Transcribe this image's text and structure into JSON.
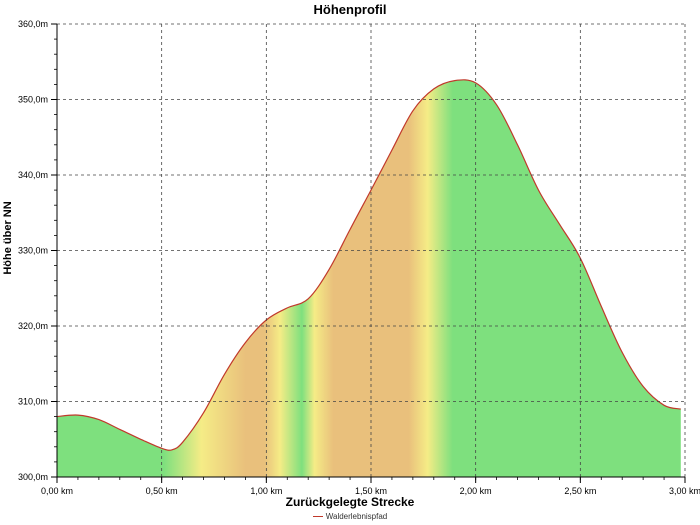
{
  "chart_data": {
    "type": "area",
    "title": "Höhenprofil",
    "xlabel": "Zurückgelegte Strecke",
    "ylabel": "Höhe über NN",
    "xlim": [
      0,
      3.0
    ],
    "ylim": [
      300,
      360
    ],
    "x_ticks": [
      0,
      0.5,
      1.0,
      1.5,
      2.0,
      2.5,
      3.0
    ],
    "x_tick_labels": [
      "0,00 km",
      "0,50 km",
      "1,00 km",
      "1,50 km",
      "2,00 km",
      "2,50 km",
      "3,00 km"
    ],
    "y_ticks": [
      300,
      310,
      320,
      330,
      340,
      350,
      360
    ],
    "y_tick_labels": [
      "300,0m",
      "310,0m",
      "320,0m",
      "330,0m",
      "340,0m",
      "350,0m",
      "360,0m"
    ],
    "grid": true,
    "legend_position": "bottom",
    "series": [
      {
        "name": "Walderlebnispfad",
        "x": [
          0,
          0.1,
          0.2,
          0.3,
          0.4,
          0.5,
          0.55,
          0.6,
          0.7,
          0.8,
          0.9,
          1.0,
          1.1,
          1.2,
          1.3,
          1.4,
          1.5,
          1.6,
          1.7,
          1.8,
          1.9,
          2.0,
          2.1,
          2.2,
          2.3,
          2.4,
          2.5,
          2.6,
          2.7,
          2.8,
          2.9,
          2.98
        ],
        "y": [
          308,
          308.2,
          307.6,
          306.3,
          305,
          303.8,
          303.6,
          304.6,
          308.5,
          313.6,
          317.8,
          320.8,
          322.4,
          323.6,
          327.5,
          332.8,
          338,
          343.3,
          348.5,
          351.4,
          352.5,
          352.2,
          349.3,
          344,
          338,
          333.5,
          329,
          322.6,
          316.5,
          312,
          309.5,
          309
        ]
      }
    ],
    "colors": {
      "line": "#c0392b",
      "green": "#7ee07e",
      "yellow": "#f5ec86",
      "orange": "#e9c07c"
    }
  }
}
